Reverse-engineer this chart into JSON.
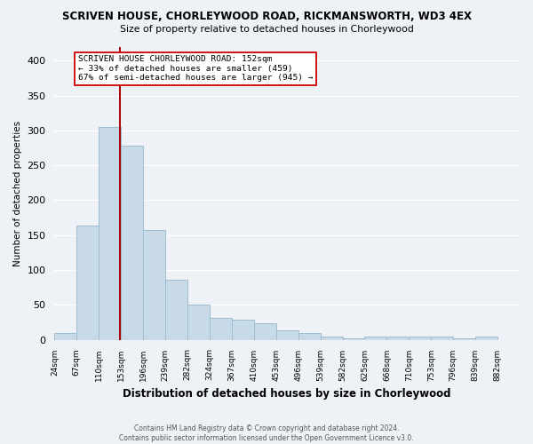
{
  "title": "SCRIVEN HOUSE, CHORLEYWOOD ROAD, RICKMANSWORTH, WD3 4EX",
  "subtitle": "Size of property relative to detached houses in Chorleywood",
  "xlabel": "Distribution of detached houses by size in Chorleywood",
  "ylabel": "Number of detached properties",
  "footer_line1": "Contains HM Land Registry data © Crown copyright and database right 2024.",
  "footer_line2": "Contains public sector information licensed under the Open Government Licence v3.0.",
  "bin_labels": [
    "24sqm",
    "67sqm",
    "110sqm",
    "153sqm",
    "196sqm",
    "239sqm",
    "282sqm",
    "324sqm",
    "367sqm",
    "410sqm",
    "453sqm",
    "496sqm",
    "539sqm",
    "582sqm",
    "625sqm",
    "668sqm",
    "710sqm",
    "753sqm",
    "796sqm",
    "839sqm",
    "882sqm"
  ],
  "bar_values": [
    10,
    163,
    305,
    278,
    157,
    86,
    50,
    31,
    29,
    24,
    13,
    9,
    4,
    2,
    5,
    5,
    4,
    4,
    2,
    4
  ],
  "bar_color": "#c8d9e8",
  "bar_edge_color": "#a0bcd0",
  "annotation_text": "SCRIVEN HOUSE CHORLEYWOOD ROAD: 152sqm\n← 33% of detached houses are smaller (459)\n67% of semi-detached houses are larger (945) →",
  "vline_color": "#aa0000",
  "annotation_box_color": "#ffffff",
  "annotation_box_edge": "#cc0000",
  "ylim": [
    0,
    420
  ],
  "yticks": [
    0,
    50,
    100,
    150,
    200,
    250,
    300,
    350,
    400
  ],
  "background_color": "#eef2f7"
}
